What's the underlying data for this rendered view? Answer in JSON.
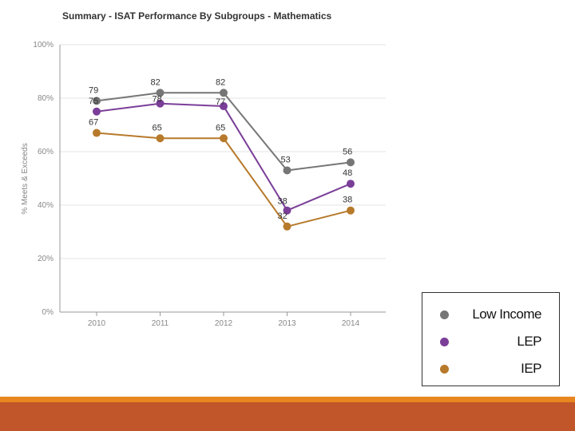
{
  "colors": {
    "low_income": "#767676",
    "lep": "#7a3e98",
    "iep": "#b77a2b",
    "footer_accent": "#e8861f",
    "footer_bar": "#c0562a"
  },
  "chart_data": {
    "type": "line",
    "title": "Summary - ISAT Performance By Subgroups - Mathematics",
    "xlabel": "",
    "ylabel": "% Meets & Exceeds",
    "categories": [
      "2010",
      "2011",
      "2012",
      "2013",
      "2014"
    ],
    "ylim": [
      0,
      100
    ],
    "yticks": [
      "0%",
      "20%",
      "40%",
      "60%",
      "80%",
      "100%"
    ],
    "grid": true,
    "legend_position": "bottom-right",
    "series": [
      {
        "name": "Low Income",
        "values": [
          79,
          82,
          82,
          53,
          56
        ],
        "labels": [
          "79",
          "82",
          "82",
          "53",
          "56"
        ]
      },
      {
        "name": "LEP",
        "values": [
          75,
          78,
          77,
          38,
          48
        ],
        "labels": [
          "75",
          "78",
          "77",
          "38",
          "48"
        ]
      },
      {
        "name": "IEP",
        "values": [
          67,
          65,
          65,
          32,
          38
        ],
        "labels": [
          "67",
          "65",
          "65",
          "32",
          "38"
        ]
      }
    ]
  },
  "legend": {
    "items": [
      {
        "label": "Low Income"
      },
      {
        "label": "LEP"
      },
      {
        "label": "IEP"
      }
    ]
  }
}
